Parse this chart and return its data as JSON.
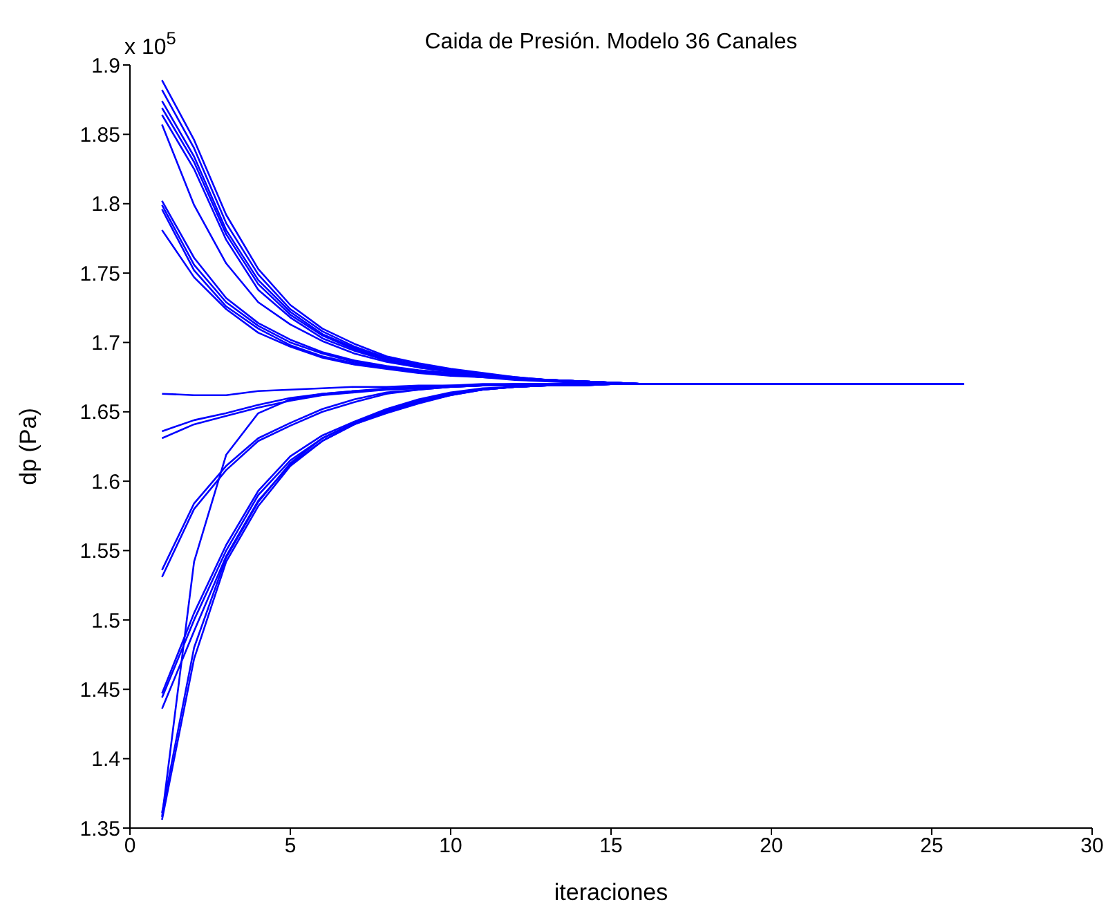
{
  "chart_data": {
    "type": "line",
    "title": "Caida de Presión. Modelo 36 Canales",
    "xlabel": "iteraciones",
    "ylabel": "dp (Pa)",
    "annotations": [
      "x 10$^{5}$"
    ],
    "x": [
      1,
      2,
      3,
      4,
      5,
      6,
      7,
      8,
      9,
      10,
      11,
      12,
      13,
      14,
      15,
      16,
      17,
      18,
      19,
      20,
      21,
      22,
      23,
      24,
      25,
      26
    ],
    "xlim": [
      0,
      30
    ],
    "xticks": [
      0,
      5,
      10,
      15,
      20,
      25,
      30
    ],
    "ylim": [
      1.35,
      1.9
    ],
    "yticks": [
      1.35,
      1.4,
      1.45,
      1.5,
      1.55,
      1.6,
      1.65,
      1.7,
      1.75,
      1.8,
      1.85,
      1.9
    ],
    "grid": false,
    "legend": false,
    "marker": "none",
    "line_style": "solid",
    "series": [
      {
        "color": "#0000ff",
        "values": [
          1.889,
          1.846,
          1.792,
          1.753,
          1.727,
          1.71,
          1.699,
          1.69,
          1.685,
          1.681,
          1.678,
          1.675,
          1.673,
          1.672,
          1.671,
          1.67,
          1.67,
          1.67,
          1.67,
          1.67,
          1.67,
          1.67,
          1.67,
          1.67,
          1.67,
          1.67
        ]
      },
      {
        "color": "#0000ff",
        "values": [
          1.882,
          1.84,
          1.786,
          1.749,
          1.724,
          1.708,
          1.697,
          1.689,
          1.684,
          1.68,
          1.677,
          1.675,
          1.673,
          1.672,
          1.671,
          1.67,
          1.67,
          1.67,
          1.67,
          1.67,
          1.67,
          1.67,
          1.67,
          1.67,
          1.67,
          1.67
        ]
      },
      {
        "color": "#0000ff",
        "values": [
          1.874,
          1.834,
          1.781,
          1.745,
          1.722,
          1.706,
          1.696,
          1.688,
          1.683,
          1.679,
          1.676,
          1.674,
          1.673,
          1.672,
          1.671,
          1.67,
          1.67,
          1.67,
          1.67,
          1.67,
          1.67,
          1.67,
          1.67,
          1.67,
          1.67,
          1.67
        ]
      },
      {
        "color": "#0000ff",
        "values": [
          1.869,
          1.83,
          1.778,
          1.742,
          1.72,
          1.705,
          1.695,
          1.687,
          1.683,
          1.679,
          1.676,
          1.674,
          1.673,
          1.672,
          1.671,
          1.67,
          1.67,
          1.67,
          1.67,
          1.67,
          1.67,
          1.67,
          1.67,
          1.67,
          1.67,
          1.67
        ]
      },
      {
        "color": "#0000ff",
        "values": [
          1.864,
          1.825,
          1.774,
          1.738,
          1.718,
          1.703,
          1.694,
          1.687,
          1.682,
          1.679,
          1.676,
          1.674,
          1.673,
          1.672,
          1.671,
          1.67,
          1.67,
          1.67,
          1.67,
          1.67,
          1.67,
          1.67,
          1.67,
          1.67,
          1.67,
          1.67
        ]
      },
      {
        "color": "#0000ff",
        "values": [
          1.857,
          1.799,
          1.757,
          1.729,
          1.713,
          1.701,
          1.692,
          1.686,
          1.682,
          1.679,
          1.676,
          1.674,
          1.673,
          1.672,
          1.671,
          1.67,
          1.67,
          1.67,
          1.67,
          1.67,
          1.67,
          1.67,
          1.67,
          1.67,
          1.67,
          1.67
        ]
      },
      {
        "color": "#0000ff",
        "values": [
          1.802,
          1.761,
          1.732,
          1.714,
          1.702,
          1.693,
          1.687,
          1.683,
          1.68,
          1.678,
          1.676,
          1.674,
          1.673,
          1.672,
          1.671,
          1.67,
          1.67,
          1.67,
          1.67,
          1.67,
          1.67,
          1.67,
          1.67,
          1.67,
          1.67,
          1.67
        ]
      },
      {
        "color": "#0000ff",
        "values": [
          1.799,
          1.756,
          1.729,
          1.712,
          1.7,
          1.692,
          1.686,
          1.682,
          1.679,
          1.677,
          1.675,
          1.674,
          1.673,
          1.672,
          1.671,
          1.67,
          1.67,
          1.67,
          1.67,
          1.67,
          1.67,
          1.67,
          1.67,
          1.67,
          1.67,
          1.67
        ]
      },
      {
        "color": "#0000ff",
        "values": [
          1.796,
          1.752,
          1.726,
          1.71,
          1.698,
          1.69,
          1.685,
          1.682,
          1.679,
          1.677,
          1.675,
          1.674,
          1.673,
          1.672,
          1.671,
          1.67,
          1.67,
          1.67,
          1.67,
          1.67,
          1.67,
          1.67,
          1.67,
          1.67,
          1.67,
          1.67
        ]
      },
      {
        "color": "#0000ff",
        "values": [
          1.781,
          1.747,
          1.724,
          1.707,
          1.697,
          1.689,
          1.684,
          1.681,
          1.678,
          1.676,
          1.675,
          1.673,
          1.672,
          1.671,
          1.671,
          1.67,
          1.67,
          1.67,
          1.67,
          1.67,
          1.67,
          1.67,
          1.67,
          1.67,
          1.67,
          1.67
        ]
      },
      {
        "color": "#0000ff",
        "values": [
          1.663,
          1.662,
          1.662,
          1.665,
          1.666,
          1.667,
          1.668,
          1.668,
          1.669,
          1.669,
          1.67,
          1.67,
          1.67,
          1.67,
          1.67,
          1.67,
          1.67,
          1.67,
          1.67,
          1.67,
          1.67,
          1.67,
          1.67,
          1.67,
          1.67,
          1.67
        ]
      },
      {
        "color": "#0000ff",
        "values": [
          1.636,
          1.644,
          1.649,
          1.655,
          1.66,
          1.663,
          1.665,
          1.666,
          1.667,
          1.668,
          1.669,
          1.669,
          1.67,
          1.67,
          1.67,
          1.67,
          1.67,
          1.67,
          1.67,
          1.67,
          1.67,
          1.67,
          1.67,
          1.67,
          1.67,
          1.67
        ]
      },
      {
        "color": "#0000ff",
        "values": [
          1.631,
          1.641,
          1.647,
          1.653,
          1.658,
          1.662,
          1.664,
          1.666,
          1.667,
          1.668,
          1.669,
          1.669,
          1.67,
          1.67,
          1.67,
          1.67,
          1.67,
          1.67,
          1.67,
          1.67,
          1.67,
          1.67,
          1.67,
          1.67,
          1.67,
          1.67
        ]
      },
      {
        "color": "#0000ff",
        "values": [
          1.536,
          1.584,
          1.611,
          1.631,
          1.642,
          1.652,
          1.659,
          1.664,
          1.666,
          1.668,
          1.669,
          1.669,
          1.67,
          1.67,
          1.67,
          1.67,
          1.67,
          1.67,
          1.67,
          1.67,
          1.67,
          1.67,
          1.67,
          1.67,
          1.67,
          1.67
        ]
      },
      {
        "color": "#0000ff",
        "values": [
          1.531,
          1.58,
          1.608,
          1.629,
          1.64,
          1.65,
          1.657,
          1.663,
          1.666,
          1.668,
          1.669,
          1.669,
          1.67,
          1.67,
          1.67,
          1.67,
          1.67,
          1.67,
          1.67,
          1.67,
          1.67,
          1.67,
          1.67,
          1.67,
          1.67,
          1.67
        ]
      },
      {
        "color": "#0000ff",
        "values": [
          1.358,
          1.542,
          1.619,
          1.649,
          1.659,
          1.663,
          1.665,
          1.667,
          1.668,
          1.669,
          1.669,
          1.67,
          1.67,
          1.67,
          1.67,
          1.67,
          1.67,
          1.67,
          1.67,
          1.67,
          1.67,
          1.67,
          1.67,
          1.67,
          1.67,
          1.67
        ]
      },
      {
        "color": "#0000ff",
        "values": [
          1.447,
          1.505,
          1.554,
          1.593,
          1.618,
          1.633,
          1.643,
          1.652,
          1.659,
          1.664,
          1.667,
          1.668,
          1.669,
          1.669,
          1.67,
          1.67,
          1.67,
          1.67,
          1.67,
          1.67,
          1.67,
          1.67,
          1.67,
          1.67,
          1.67,
          1.67
        ]
      },
      {
        "color": "#0000ff",
        "values": [
          1.444,
          1.5,
          1.55,
          1.59,
          1.615,
          1.631,
          1.642,
          1.651,
          1.658,
          1.663,
          1.666,
          1.668,
          1.669,
          1.669,
          1.67,
          1.67,
          1.67,
          1.67,
          1.67,
          1.67,
          1.67,
          1.67,
          1.67,
          1.67,
          1.67,
          1.67
        ]
      },
      {
        "color": "#0000ff",
        "values": [
          1.436,
          1.492,
          1.546,
          1.586,
          1.612,
          1.629,
          1.641,
          1.65,
          1.657,
          1.663,
          1.666,
          1.668,
          1.669,
          1.669,
          1.67,
          1.67,
          1.67,
          1.67,
          1.67,
          1.67,
          1.67,
          1.67,
          1.67,
          1.67,
          1.67,
          1.67
        ]
      },
      {
        "color": "#0000ff",
        "values": [
          1.356,
          1.472,
          1.542,
          1.582,
          1.611,
          1.629,
          1.641,
          1.649,
          1.656,
          1.662,
          1.666,
          1.668,
          1.669,
          1.669,
          1.67,
          1.67,
          1.67,
          1.67,
          1.67,
          1.67,
          1.67,
          1.67,
          1.67,
          1.67,
          1.67,
          1.67
        ]
      },
      {
        "color": "#0000ff",
        "values": [
          1.361,
          1.48,
          1.545,
          1.585,
          1.613,
          1.631,
          1.642,
          1.65,
          1.657,
          1.662,
          1.666,
          1.668,
          1.669,
          1.669,
          1.67,
          1.67,
          1.67,
          1.67,
          1.67,
          1.67,
          1.67,
          1.67,
          1.67,
          1.67,
          1.67,
          1.67
        ]
      }
    ]
  }
}
